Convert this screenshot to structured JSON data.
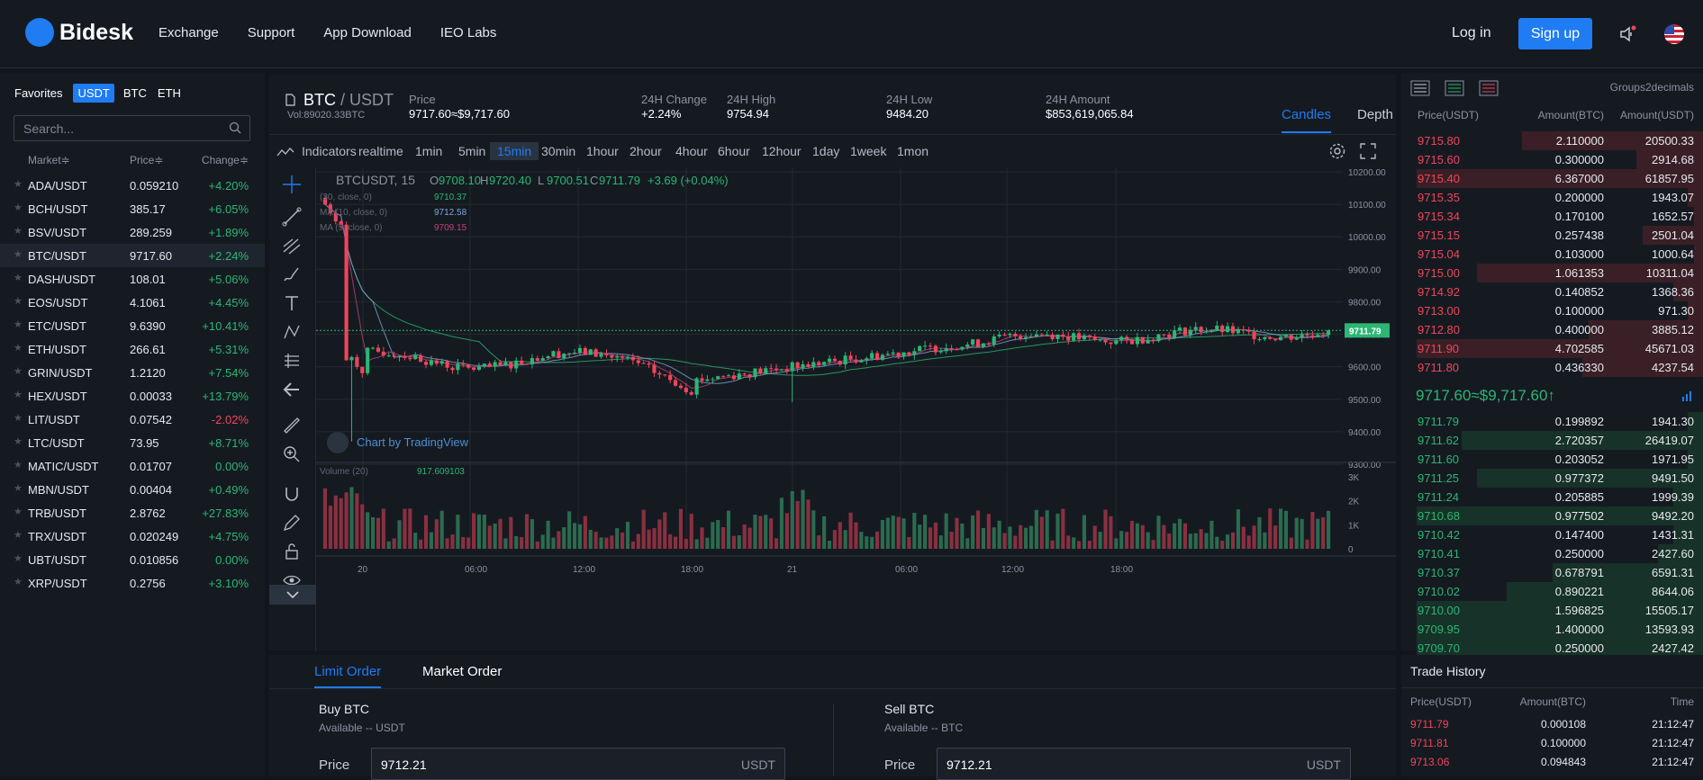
{
  "header": {
    "brand": "Bidesk",
    "nav": [
      "Exchange",
      "Support",
      "App Download",
      "IEO Labs"
    ],
    "login": "Log in",
    "signup": "Sign up"
  },
  "markets": {
    "tabs": [
      "Favorites",
      "USDT",
      "BTC",
      "ETH"
    ],
    "active_tab": "USDT",
    "search_placeholder": "Search...",
    "headers": {
      "market": "Market≑",
      "price": "Price≑",
      "change": "Change≑"
    },
    "rows": [
      {
        "pair": "ADA/USDT",
        "price": "0.059210",
        "change": "+4.20%",
        "dir": "up"
      },
      {
        "pair": "BCH/USDT",
        "price": "385.17",
        "change": "+6.05%",
        "dir": "up"
      },
      {
        "pair": "BSV/USDT",
        "price": "289.259",
        "change": "+1.89%",
        "dir": "up"
      },
      {
        "pair": "BTC/USDT",
        "price": "9717.60",
        "change": "+2.24%",
        "dir": "up"
      },
      {
        "pair": "DASH/USDT",
        "price": "108.01",
        "change": "+5.06%",
        "dir": "up"
      },
      {
        "pair": "EOS/USDT",
        "price": "4.1061",
        "change": "+4.45%",
        "dir": "up"
      },
      {
        "pair": "ETC/USDT",
        "price": "9.6390",
        "change": "+10.41%",
        "dir": "up"
      },
      {
        "pair": "ETH/USDT",
        "price": "266.61",
        "change": "+5.31%",
        "dir": "up"
      },
      {
        "pair": "GRIN/USDT",
        "price": "1.2120",
        "change": "+7.54%",
        "dir": "up"
      },
      {
        "pair": "HEX/USDT",
        "price": "0.00033",
        "change": "+13.79%",
        "dir": "up"
      },
      {
        "pair": "LIT/USDT",
        "price": "0.07542",
        "change": "-2.02%",
        "dir": "down"
      },
      {
        "pair": "LTC/USDT",
        "price": "73.95",
        "change": "+8.71%",
        "dir": "up"
      },
      {
        "pair": "MATIC/USDT",
        "price": "0.01707",
        "change": "0.00%",
        "dir": "up"
      },
      {
        "pair": "MBN/USDT",
        "price": "0.00404",
        "change": "+0.49%",
        "dir": "up"
      },
      {
        "pair": "TRB/USDT",
        "price": "2.8762",
        "change": "+27.83%",
        "dir": "up"
      },
      {
        "pair": "TRX/USDT",
        "price": "0.020249",
        "change": "+4.75%",
        "dir": "up"
      },
      {
        "pair": "UBT/USDT",
        "price": "0.010856",
        "change": "0.00%",
        "dir": "up"
      },
      {
        "pair": "XRP/USDT",
        "price": "0.2756",
        "change": "+3.10%",
        "dir": "up"
      }
    ]
  },
  "ticker": {
    "base": "BTC",
    "quote": " / USDT",
    "volume": "Vol:89020.33BTC",
    "price_label": "Price",
    "price_value": "9717.60≈$9,717.60",
    "change_label": "24H Change",
    "change_value": "+2.24%",
    "high_label": "24H High",
    "high_value": "9754.94",
    "low_label": "24H Low",
    "low_value": "9484.20",
    "amount_label": "24H Amount",
    "amount_value": "$853,619,065.84",
    "view_tabs": [
      "Candles",
      "Depth"
    ]
  },
  "chart_toolbar": {
    "indicators": "Indicators",
    "intervals": [
      "realtime",
      "1min",
      "5min",
      "15min",
      "30min",
      "1hour",
      "2hour",
      "4hour",
      "6hour",
      "12hour",
      "1day",
      "1week",
      "1mon"
    ],
    "active_interval": "15min"
  },
  "chart_data": {
    "type": "candlestick",
    "symbol_label": "BTCUSDT, 15",
    "ohlc_legend": {
      "o": "9708.10",
      "h": "9720.40",
      "l": "9700.51",
      "c": "9711.79",
      "chg": "+3.69 (+0.04%)"
    },
    "ma_lines": [
      {
        "label": "(30, close, 0)",
        "value": "9710.37",
        "color": "#2bb673"
      },
      {
        "label": "MA (10, close, 0)",
        "value": "9712.58",
        "color": "#7ea6d8"
      },
      {
        "label": "MA (5, close, 0)",
        "value": "9709.15",
        "color": "#c2407a"
      }
    ],
    "y_ticks": [
      "10200.00",
      "10100.00",
      "10000.00",
      "9900.00",
      "9800.00",
      "9700.00",
      "9600.00",
      "9500.00",
      "9400.00",
      "9300.00"
    ],
    "ylim": [
      9300,
      10200
    ],
    "last_price": "9711.79",
    "x_ticks": [
      "20",
      "06:00",
      "12:00",
      "18:00",
      "21",
      "06:00",
      "12:00",
      "18:00"
    ],
    "volume_label": "Volume (20)",
    "volume_value": "917.609103",
    "volume_ticks": [
      "3K",
      "2K",
      "1K",
      "0"
    ],
    "watermark": "Chart by TradingView",
    "colors": {
      "up": "#2bb673",
      "down": "#f0455a"
    }
  },
  "order_form": {
    "tabs": [
      "Limit Order",
      "Market Order"
    ],
    "buy_title": "Buy BTC",
    "buy_available": "Available -- USDT",
    "sell_title": "Sell BTC",
    "sell_available": "Available -- BTC",
    "price_label": "Price",
    "buy_price": "9712.21",
    "sell_price": "9712.21",
    "unit": "USDT"
  },
  "order_book": {
    "groups": "Groups2decimals",
    "headers": {
      "price": "Price(USDT)",
      "amount": "Amount(BTC)",
      "total": "Amount(USDT)"
    },
    "asks": [
      {
        "p": "9715.80",
        "a": "2.110000",
        "t": "20500.33",
        "d": 0.6
      },
      {
        "p": "9715.60",
        "a": "0.300000",
        "t": "2914.68",
        "d": 0.22
      },
      {
        "p": "9715.40",
        "a": "6.367000",
        "t": "61857.95",
        "d": 0.95
      },
      {
        "p": "9715.35",
        "a": "0.200000",
        "t": "1943.07",
        "d": 0.05
      },
      {
        "p": "9715.34",
        "a": "0.170100",
        "t": "1652.57",
        "d": 0.03
      },
      {
        "p": "9715.15",
        "a": "0.257438",
        "t": "2501.04",
        "d": 0.2
      },
      {
        "p": "9715.04",
        "a": "0.103000",
        "t": "1000.64",
        "d": 0.03
      },
      {
        "p": "9715.00",
        "a": "1.061353",
        "t": "10311.04",
        "d": 0.75
      },
      {
        "p": "9714.92",
        "a": "0.140852",
        "t": "1368.36",
        "d": 0.1
      },
      {
        "p": "9713.00",
        "a": "0.100000",
        "t": "971.30",
        "d": 0.05
      },
      {
        "p": "9712.80",
        "a": "0.400000",
        "t": "3885.12",
        "d": 0.38
      },
      {
        "p": "9711.90",
        "a": "4.702585",
        "t": "45671.03",
        "d": 0.95
      },
      {
        "p": "9711.80",
        "a": "0.436330",
        "t": "4237.54",
        "d": 0.4
      }
    ],
    "mid": "9717.60≈$9,717.60↑",
    "bids": [
      {
        "p": "9711.79",
        "a": "0.199892",
        "t": "1941.30",
        "d": 0.05
      },
      {
        "p": "9711.62",
        "a": "2.720357",
        "t": "26419.07",
        "d": 0.8
      },
      {
        "p": "9711.60",
        "a": "0.203052",
        "t": "1971.95",
        "d": 0.05
      },
      {
        "p": "9711.25",
        "a": "0.977372",
        "t": "9491.50",
        "d": 0.75
      },
      {
        "p": "9711.24",
        "a": "0.205885",
        "t": "1999.39",
        "d": 0.1
      },
      {
        "p": "9710.68",
        "a": "0.977502",
        "t": "9492.20",
        "d": 0.95
      },
      {
        "p": "9710.42",
        "a": "0.147400",
        "t": "1431.31",
        "d": 0.1
      },
      {
        "p": "9710.41",
        "a": "0.250000",
        "t": "2427.60",
        "d": 0.15
      },
      {
        "p": "9710.37",
        "a": "0.678791",
        "t": "6591.31",
        "d": 0.5
      },
      {
        "p": "9710.02",
        "a": "0.890221",
        "t": "8644.06",
        "d": 0.65
      },
      {
        "p": "9710.00",
        "a": "1.596825",
        "t": "15505.17",
        "d": 0.95
      },
      {
        "p": "9709.95",
        "a": "1.400000",
        "t": "13593.93",
        "d": 0.95
      },
      {
        "p": "9709.70",
        "a": "0.250000",
        "t": "2427.42",
        "d": 0.95
      }
    ]
  },
  "trade_history": {
    "title": "Trade History",
    "headers": {
      "price": "Price(USDT)",
      "amount": "Amount(BTC)",
      "time": "Time"
    },
    "rows": [
      {
        "p": "9711.79",
        "a": "0.000108",
        "t": "21:12:47"
      },
      {
        "p": "9711.81",
        "a": "0.100000",
        "t": "21:12:47"
      },
      {
        "p": "9713.06",
        "a": "0.094843",
        "t": "21:12:47"
      }
    ]
  }
}
